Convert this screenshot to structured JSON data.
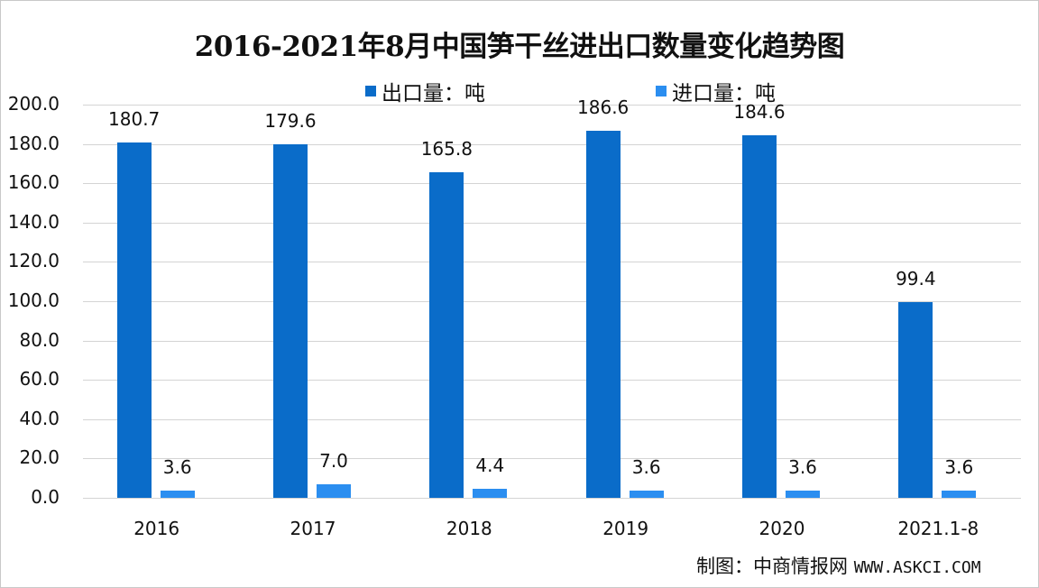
{
  "chart_data": {
    "type": "bar",
    "title": "2016-2021年8月中国笋干丝进出口数量变化趋势图",
    "categories": [
      "2016",
      "2017",
      "2018",
      "2019",
      "2020",
      "2021.1-8"
    ],
    "series": [
      {
        "name": "出口量：吨",
        "color": "#0a6cc9",
        "values": [
          180.7,
          179.6,
          165.8,
          186.6,
          184.6,
          99.4
        ]
      },
      {
        "name": "进口量：吨",
        "color": "#2b8ef0",
        "values": [
          3.6,
          7.0,
          4.4,
          3.6,
          3.6,
          3.6
        ]
      }
    ],
    "xlabel": "",
    "ylabel": "",
    "ylim": [
      0,
      200
    ],
    "yticks": [
      "0.0",
      "20.0",
      "40.0",
      "60.0",
      "80.0",
      "100.0",
      "120.0",
      "140.0",
      "160.0",
      "180.0",
      "200.0"
    ],
    "grid": true,
    "legend_position": "top",
    "value_labels": {
      "export": [
        "180.7",
        "179.6",
        "165.8",
        "186.6",
        "184.6",
        "99.4"
      ],
      "import": [
        "3.6",
        "7.0",
        "4.4",
        "3.6",
        "3.6",
        "3.6"
      ]
    }
  },
  "legend": {
    "export_label": "出口量：吨",
    "import_label": "进口量：吨"
  },
  "source": {
    "label": "制图：中商情报网",
    "url": "WWW.ASKCI.COM"
  }
}
